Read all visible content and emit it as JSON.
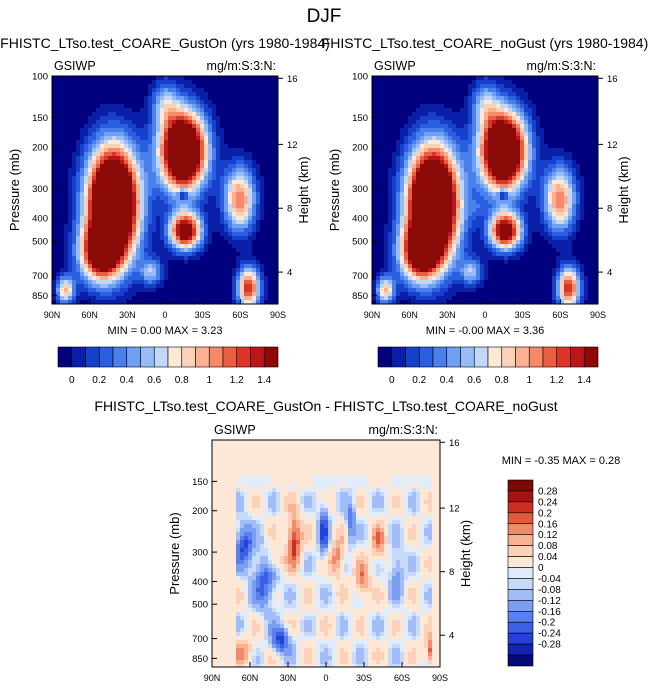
{
  "figure": {
    "title": "DJF"
  },
  "colors": {
    "main_scale": [
      "#00007f",
      "#0a1fa8",
      "#1840c8",
      "#2a5fe0",
      "#4a80ec",
      "#6fa0f4",
      "#97bdf8",
      "#c2d8fb",
      "#ffe8d6",
      "#fdd0b8",
      "#fbb091",
      "#f6896a",
      "#ea5f42",
      "#d9372a",
      "#bb171a",
      "#8c0a08"
    ],
    "diff_scale": [
      "#06087a",
      "#1522b0",
      "#2442d8",
      "#3b60e6",
      "#5a80ee",
      "#7c9ef2",
      "#a1bcf6",
      "#c8daf9",
      "#e1ecfb",
      "#fde7d6",
      "#fcd1b9",
      "#f8b192",
      "#f08a69",
      "#e05b3c",
      "#cb2f20",
      "#a31410",
      "#7a0a06"
    ]
  },
  "chart_data": [
    {
      "type": "heatmap",
      "id": "top-left",
      "title": "FHISTC_LTso.test_COARE_GustOn (yrs 1980-1984)",
      "left_label": "GSIWP",
      "right_label": "mg/m:S:3:N:",
      "xlabel": "",
      "ylabel": "Pressure (mb)",
      "ylabel_right": "Height (km)",
      "x_ticks": [
        "90N",
        "60N",
        "30N",
        "0",
        "30S",
        "60S",
        "90S"
      ],
      "y_ticks": [
        "100",
        "150",
        "200",
        "300",
        "400",
        "500",
        "700",
        "850"
      ],
      "y_ticks_right": [
        "16",
        "12",
        "8",
        "4"
      ],
      "stats_text": "MIN =  0.00  MAX =  3.23",
      "colorbar_labels": [
        "0",
        "0.2",
        "0.4",
        "0.6",
        "0.8",
        "1",
        "1.2",
        "1.4"
      ]
    },
    {
      "type": "heatmap",
      "id": "top-right",
      "title": "FHISTC_LTso.test_COARE_noGust (yrs 1980-1984)",
      "left_label": "GSIWP",
      "right_label": "mg/m:S:3:N:",
      "xlabel": "",
      "ylabel": "Pressure (mb)",
      "ylabel_right": "Height (km)",
      "x_ticks": [
        "90N",
        "60N",
        "30N",
        "0",
        "30S",
        "60S",
        "90S"
      ],
      "y_ticks": [
        "100",
        "150",
        "200",
        "300",
        "400",
        "500",
        "700",
        "850"
      ],
      "y_ticks_right": [
        "16",
        "12",
        "8",
        "4"
      ],
      "stats_text": "MIN = -0.00  MAX =  3.36",
      "colorbar_labels": [
        "0",
        "0.2",
        "0.4",
        "0.6",
        "0.8",
        "1",
        "1.2",
        "1.4"
      ]
    },
    {
      "type": "heatmap",
      "id": "difference",
      "title": "FHISTC_LTso.test_COARE_GustOn - FHISTC_LTso.test_COARE_noGust",
      "left_label": "GSIWP",
      "right_label": "mg/m:S:3:N:",
      "xlabel": "",
      "ylabel": "Pressure (mb)",
      "ylabel_right": "Height (km)",
      "x_ticks": [
        "90N",
        "60N",
        "30N",
        "0",
        "30S",
        "60S",
        "90S"
      ],
      "y_ticks": [
        "150",
        "200",
        "300",
        "400",
        "500",
        "700",
        "850"
      ],
      "y_ticks_right": [
        "16",
        "12",
        "8",
        "4"
      ],
      "stats_text": "MIN = -0.35  MAX =  0.28",
      "colorbar_labels": [
        "0.28",
        "0.24",
        "0.2",
        "0.16",
        "0.12",
        "0.08",
        "0.04",
        "0",
        "-0.04",
        "-0.08",
        "-0.12",
        "-0.16",
        "-0.2",
        "-0.24",
        "-0.28"
      ]
    }
  ]
}
